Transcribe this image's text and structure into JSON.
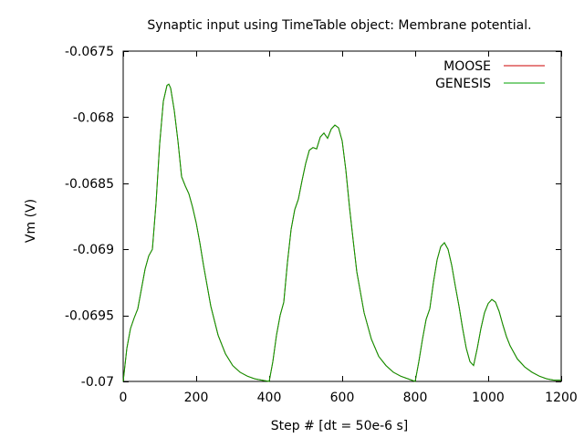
{
  "chart_data": {
    "type": "line",
    "title": "Synaptic input using TimeTable object: Membrane potential.",
    "xlabel": "Step # [dt = 50e-6 s]",
    "ylabel": "Vm (V)",
    "xlim": [
      0,
      1200
    ],
    "ylim": [
      -0.07,
      -0.0675
    ],
    "x_ticks": [
      0,
      200,
      400,
      600,
      800,
      1000,
      1200
    ],
    "x_tick_labels": [
      "0",
      "200",
      "400",
      "600",
      "800",
      "1000",
      "1200"
    ],
    "y_ticks": [
      -0.07,
      -0.0695,
      -0.069,
      -0.0685,
      -0.068,
      -0.0675
    ],
    "y_tick_labels": [
      "-0.07",
      "-0.0695",
      "-0.069",
      "-0.0685",
      "-0.068",
      "-0.0675"
    ],
    "grid": false,
    "legend_position": "top-right",
    "series": [
      {
        "name": "MOOSE",
        "color": "#cc0000",
        "x": [
          0,
          10,
          20,
          30,
          40,
          50,
          60,
          70,
          80,
          90,
          100,
          110,
          120,
          125,
          130,
          140,
          150,
          160,
          170,
          180,
          190,
          200,
          210,
          220,
          240,
          260,
          280,
          300,
          320,
          340,
          360,
          380,
          400,
          410,
          420,
          430,
          440,
          450,
          460,
          470,
          480,
          490,
          500,
          510,
          520,
          530,
          540,
          550,
          560,
          570,
          580,
          590,
          600,
          610,
          620,
          630,
          640,
          660,
          680,
          700,
          720,
          740,
          760,
          780,
          800,
          810,
          820,
          830,
          840,
          850,
          860,
          870,
          880,
          890,
          900,
          910,
          920,
          930,
          940,
          950,
          960,
          970,
          980,
          990,
          1000,
          1010,
          1020,
          1030,
          1040,
          1050,
          1060,
          1080,
          1100,
          1120,
          1140,
          1160,
          1180,
          1200
        ],
        "y": [
          -0.07,
          -0.06975,
          -0.0696,
          -0.06952,
          -0.06945,
          -0.0693,
          -0.06915,
          -0.06905,
          -0.069,
          -0.06865,
          -0.0682,
          -0.06788,
          -0.06776,
          -0.06775,
          -0.06778,
          -0.06795,
          -0.06818,
          -0.06845,
          -0.06852,
          -0.06858,
          -0.06868,
          -0.0688,
          -0.06895,
          -0.06912,
          -0.06943,
          -0.06965,
          -0.06979,
          -0.06988,
          -0.06993,
          -0.06996,
          -0.06998,
          -0.06999,
          -0.07,
          -0.06985,
          -0.06965,
          -0.0695,
          -0.0694,
          -0.0691,
          -0.06885,
          -0.0687,
          -0.06862,
          -0.06848,
          -0.06835,
          -0.06825,
          -0.06823,
          -0.06824,
          -0.06815,
          -0.06812,
          -0.06816,
          -0.06809,
          -0.06806,
          -0.06808,
          -0.06818,
          -0.0684,
          -0.06868,
          -0.06893,
          -0.06917,
          -0.06948,
          -0.06968,
          -0.06981,
          -0.06988,
          -0.06993,
          -0.06996,
          -0.06998,
          -0.07,
          -0.06985,
          -0.06968,
          -0.06953,
          -0.06945,
          -0.06925,
          -0.06908,
          -0.06898,
          -0.06895,
          -0.069,
          -0.06912,
          -0.06928,
          -0.06943,
          -0.0696,
          -0.06975,
          -0.06985,
          -0.06988,
          -0.06975,
          -0.0696,
          -0.06948,
          -0.06941,
          -0.06938,
          -0.0694,
          -0.06947,
          -0.06957,
          -0.06966,
          -0.06973,
          -0.06983,
          -0.06989,
          -0.06993,
          -0.06996,
          -0.06998,
          -0.06999,
          -0.06999
        ]
      },
      {
        "name": "GENESIS",
        "color": "#00a000",
        "x": [
          0,
          10,
          20,
          30,
          40,
          50,
          60,
          70,
          80,
          90,
          100,
          110,
          120,
          125,
          130,
          140,
          150,
          160,
          170,
          180,
          190,
          200,
          210,
          220,
          240,
          260,
          280,
          300,
          320,
          340,
          360,
          380,
          400,
          410,
          420,
          430,
          440,
          450,
          460,
          470,
          480,
          490,
          500,
          510,
          520,
          530,
          540,
          550,
          560,
          570,
          580,
          590,
          600,
          610,
          620,
          630,
          640,
          660,
          680,
          700,
          720,
          740,
          760,
          780,
          800,
          810,
          820,
          830,
          840,
          850,
          860,
          870,
          880,
          890,
          900,
          910,
          920,
          930,
          940,
          950,
          960,
          970,
          980,
          990,
          1000,
          1010,
          1020,
          1030,
          1040,
          1050,
          1060,
          1080,
          1100,
          1120,
          1140,
          1160,
          1180,
          1200
        ],
        "y": [
          -0.07,
          -0.06975,
          -0.0696,
          -0.06952,
          -0.06945,
          -0.0693,
          -0.06915,
          -0.06905,
          -0.069,
          -0.06865,
          -0.0682,
          -0.06788,
          -0.06776,
          -0.06775,
          -0.06778,
          -0.06795,
          -0.06818,
          -0.06845,
          -0.06852,
          -0.06858,
          -0.06868,
          -0.0688,
          -0.06895,
          -0.06912,
          -0.06943,
          -0.06965,
          -0.06979,
          -0.06988,
          -0.06993,
          -0.06996,
          -0.06998,
          -0.06999,
          -0.07,
          -0.06985,
          -0.06965,
          -0.0695,
          -0.0694,
          -0.0691,
          -0.06885,
          -0.0687,
          -0.06862,
          -0.06848,
          -0.06835,
          -0.06825,
          -0.06823,
          -0.06824,
          -0.06815,
          -0.06812,
          -0.06816,
          -0.06809,
          -0.06806,
          -0.06808,
          -0.06818,
          -0.0684,
          -0.06868,
          -0.06893,
          -0.06917,
          -0.06948,
          -0.06968,
          -0.06981,
          -0.06988,
          -0.06993,
          -0.06996,
          -0.06998,
          -0.07,
          -0.06985,
          -0.06968,
          -0.06953,
          -0.06945,
          -0.06925,
          -0.06908,
          -0.06898,
          -0.06895,
          -0.069,
          -0.06912,
          -0.06928,
          -0.06943,
          -0.0696,
          -0.06975,
          -0.06985,
          -0.06988,
          -0.06975,
          -0.0696,
          -0.06948,
          -0.06941,
          -0.06938,
          -0.0694,
          -0.06947,
          -0.06957,
          -0.06966,
          -0.06973,
          -0.06983,
          -0.06989,
          -0.06993,
          -0.06996,
          -0.06998,
          -0.06999,
          -0.06999
        ]
      }
    ]
  }
}
